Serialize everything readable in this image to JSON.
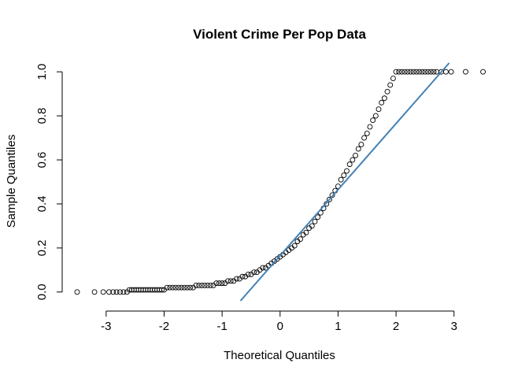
{
  "chart_data": {
    "type": "scatter",
    "subtype": "qq-normal",
    "title": "Violent Crime Per Pop Data",
    "xlabel": "Theoretical Quantiles",
    "ylabel": "Sample Quantiles",
    "xlim": [
      -3.5,
      3.75
    ],
    "ylim": [
      -0.04,
      1.04
    ],
    "x_ticks": [
      -3,
      -2,
      -1,
      0,
      1,
      2,
      3
    ],
    "y_ticks": [
      0.0,
      0.2,
      0.4,
      0.6,
      0.8,
      1.0
    ],
    "x_tick_labels": [
      "-3",
      "-2",
      "-1",
      "0",
      "1",
      "2",
      "3"
    ],
    "y_tick_labels": [
      "0.0",
      "0.2",
      "0.4",
      "0.6",
      "0.8",
      "1.0"
    ],
    "grid": false,
    "legend": "none",
    "point_color": "#000000",
    "line_color": "#4682b4",
    "reference_line": {
      "slope": 0.3,
      "intercept": 0.165
    },
    "points": [
      [
        -3.5,
        0.0
      ],
      [
        -3.2,
        0.0
      ],
      [
        -3.05,
        0.0
      ],
      [
        -2.95,
        0.0
      ],
      [
        -2.88,
        0.0
      ],
      [
        -2.82,
        0.0
      ],
      [
        -2.76,
        0.0
      ],
      [
        -2.7,
        0.0
      ],
      [
        -2.64,
        0.0
      ],
      [
        -2.6,
        0.01
      ],
      [
        -2.56,
        0.01
      ],
      [
        -2.52,
        0.01
      ],
      [
        -2.48,
        0.01
      ],
      [
        -2.44,
        0.01
      ],
      [
        -2.4,
        0.01
      ],
      [
        -2.36,
        0.01
      ],
      [
        -2.32,
        0.01
      ],
      [
        -2.28,
        0.01
      ],
      [
        -2.24,
        0.01
      ],
      [
        -2.2,
        0.01
      ],
      [
        -2.16,
        0.01
      ],
      [
        -2.12,
        0.01
      ],
      [
        -2.08,
        0.01
      ],
      [
        -2.04,
        0.01
      ],
      [
        -2.0,
        0.01
      ],
      [
        -1.95,
        0.02
      ],
      [
        -1.9,
        0.02
      ],
      [
        -1.85,
        0.02
      ],
      [
        -1.8,
        0.02
      ],
      [
        -1.75,
        0.02
      ],
      [
        -1.7,
        0.02
      ],
      [
        -1.65,
        0.02
      ],
      [
        -1.6,
        0.02
      ],
      [
        -1.55,
        0.02
      ],
      [
        -1.5,
        0.02
      ],
      [
        -1.45,
        0.03
      ],
      [
        -1.4,
        0.03
      ],
      [
        -1.35,
        0.03
      ],
      [
        -1.3,
        0.03
      ],
      [
        -1.25,
        0.03
      ],
      [
        -1.2,
        0.03
      ],
      [
        -1.15,
        0.03
      ],
      [
        -1.1,
        0.04
      ],
      [
        -1.05,
        0.04
      ],
      [
        -1.0,
        0.04
      ],
      [
        -0.95,
        0.04
      ],
      [
        -0.9,
        0.05
      ],
      [
        -0.85,
        0.05
      ],
      [
        -0.8,
        0.05
      ],
      [
        -0.75,
        0.06
      ],
      [
        -0.7,
        0.06
      ],
      [
        -0.65,
        0.07
      ],
      [
        -0.6,
        0.07
      ],
      [
        -0.55,
        0.08
      ],
      [
        -0.5,
        0.08
      ],
      [
        -0.45,
        0.09
      ],
      [
        -0.4,
        0.09
      ],
      [
        -0.35,
        0.1
      ],
      [
        -0.3,
        0.11
      ],
      [
        -0.25,
        0.11
      ],
      [
        -0.2,
        0.12
      ],
      [
        -0.15,
        0.13
      ],
      [
        -0.1,
        0.14
      ],
      [
        -0.05,
        0.15
      ],
      [
        0.0,
        0.16
      ],
      [
        0.05,
        0.17
      ],
      [
        0.1,
        0.18
      ],
      [
        0.15,
        0.19
      ],
      [
        0.2,
        0.2
      ],
      [
        0.25,
        0.21
      ],
      [
        0.3,
        0.23
      ],
      [
        0.35,
        0.24
      ],
      [
        0.4,
        0.26
      ],
      [
        0.45,
        0.27
      ],
      [
        0.5,
        0.29
      ],
      [
        0.55,
        0.3
      ],
      [
        0.6,
        0.32
      ],
      [
        0.65,
        0.34
      ],
      [
        0.7,
        0.36
      ],
      [
        0.75,
        0.38
      ],
      [
        0.8,
        0.4
      ],
      [
        0.85,
        0.42
      ],
      [
        0.9,
        0.44
      ],
      [
        0.95,
        0.46
      ],
      [
        1.0,
        0.48
      ],
      [
        1.05,
        0.51
      ],
      [
        1.1,
        0.53
      ],
      [
        1.15,
        0.55
      ],
      [
        1.2,
        0.58
      ],
      [
        1.25,
        0.6
      ],
      [
        1.3,
        0.62
      ],
      [
        1.35,
        0.65
      ],
      [
        1.4,
        0.67
      ],
      [
        1.45,
        0.7
      ],
      [
        1.5,
        0.72
      ],
      [
        1.55,
        0.75
      ],
      [
        1.6,
        0.78
      ],
      [
        1.65,
        0.8
      ],
      [
        1.7,
        0.83
      ],
      [
        1.75,
        0.86
      ],
      [
        1.8,
        0.88
      ],
      [
        1.85,
        0.91
      ],
      [
        1.9,
        0.94
      ],
      [
        1.95,
        0.97
      ],
      [
        2.0,
        1.0
      ],
      [
        2.05,
        1.0
      ],
      [
        2.1,
        1.0
      ],
      [
        2.15,
        1.0
      ],
      [
        2.2,
        1.0
      ],
      [
        2.25,
        1.0
      ],
      [
        2.3,
        1.0
      ],
      [
        2.35,
        1.0
      ],
      [
        2.4,
        1.0
      ],
      [
        2.45,
        1.0
      ],
      [
        2.5,
        1.0
      ],
      [
        2.55,
        1.0
      ],
      [
        2.6,
        1.0
      ],
      [
        2.65,
        1.0
      ],
      [
        2.7,
        1.0
      ],
      [
        2.78,
        1.0
      ],
      [
        2.86,
        1.0
      ],
      [
        2.95,
        1.0
      ],
      [
        3.2,
        1.0
      ],
      [
        3.5,
        1.0
      ]
    ]
  }
}
